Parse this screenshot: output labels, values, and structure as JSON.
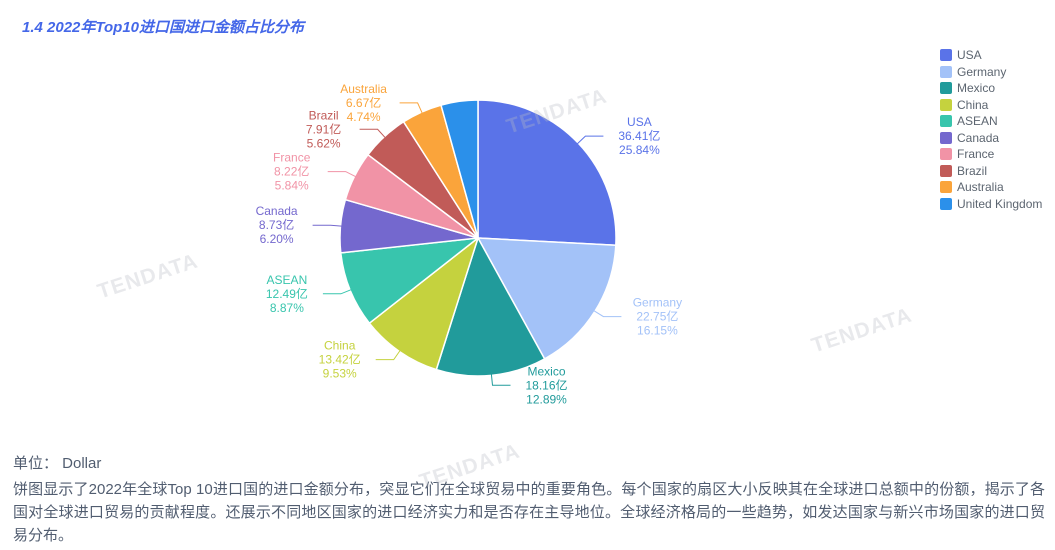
{
  "title": "1.4 2022年Top10进口国进口金额占比分布",
  "watermark": {
    "text": "TENDATA"
  },
  "chart_data": {
    "type": "pie",
    "title": "2022年Top10进口国进口金额占比分布",
    "unit": "亿",
    "legend_position": "right",
    "start_angle_deg": 0,
    "slices": [
      {
        "name": "USA",
        "value": "36.41",
        "percent": 25.84,
        "color": "#5a73e8",
        "label_visible": true
      },
      {
        "name": "Germany",
        "value": "22.75",
        "percent": 16.15,
        "color": "#a3c2f8",
        "label_visible": true
      },
      {
        "name": "Mexico",
        "value": "18.16",
        "percent": 12.89,
        "color": "#219b9b",
        "label_visible": true
      },
      {
        "name": "China",
        "value": "13.42",
        "percent": 9.53,
        "color": "#c5d23e",
        "label_visible": true
      },
      {
        "name": "ASEAN",
        "value": "12.49",
        "percent": 8.87,
        "color": "#38c5ad",
        "label_visible": true
      },
      {
        "name": "Canada",
        "value": "8.73",
        "percent": 6.2,
        "color": "#7468ce",
        "label_visible": true
      },
      {
        "name": "France",
        "value": "8.22",
        "percent": 5.84,
        "color": "#f193a6",
        "label_visible": true
      },
      {
        "name": "Brazil",
        "value": "7.91",
        "percent": 5.62,
        "color": "#c15b58",
        "label_visible": true
      },
      {
        "name": "Australia",
        "value": "6.67",
        "percent": 4.74,
        "color": "#faa43b",
        "label_visible": true
      },
      {
        "name": "United Kingdom",
        "value": null,
        "percent": 4.32,
        "color": "#2b90ea",
        "label_visible": false
      }
    ]
  },
  "footer": {
    "unit_label": "单位： Dollar",
    "description": "饼图显示了2022年全球Top 10进口国的进口金额分布，突显它们在全球贸易中的重要角色。每个国家的扇区大小反映其在全球进口总额中的份额，揭示了各国对全球进口贸易的贡献程度。还展示不同地区国家的进口经济实力和是否存在主导地位。全球经济格局的一些趋势，如发达国家与新兴市场国家的进口贸易分布。"
  }
}
